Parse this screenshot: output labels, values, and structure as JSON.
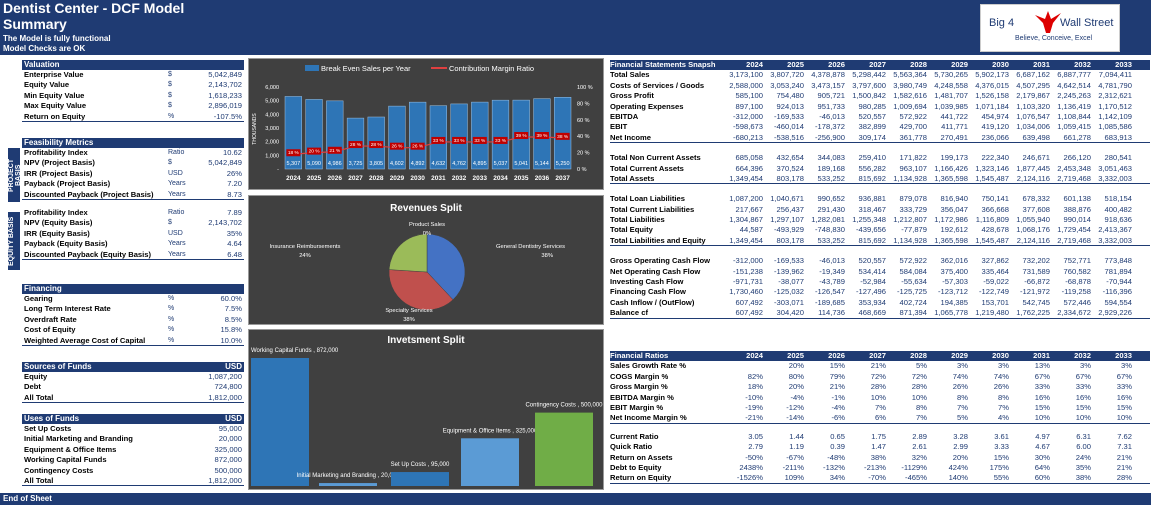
{
  "header": {
    "title": "Dentist Center - DCF Model",
    "subtitle": "Summary",
    "status1": "The Model is fully functional",
    "status2": "Model Checks are OK"
  },
  "logo": {
    "left": "Big 4",
    "right": "Wall Street",
    "tagline": "Believe, Conceive, Excel"
  },
  "valuation": {
    "title": "Valuation",
    "rows": [
      {
        "label": "Enterprise Value",
        "unit": "$",
        "value": "5,042,849"
      },
      {
        "label": "Equity Value",
        "unit": "$",
        "value": "2,143,702"
      },
      {
        "label": "Min Equity Value",
        "unit": "$",
        "value": "1,618,233"
      },
      {
        "label": "Max Equity Value",
        "unit": "$",
        "value": "2,896,019"
      },
      {
        "label": "Return on Equity",
        "unit": "%",
        "value": "-107.5%"
      }
    ]
  },
  "feasibility": {
    "title": "Feasibility Metrics",
    "side_project": "PROJECT BASIS",
    "side_equity": "EQUITY BASIS",
    "project": [
      {
        "label": "Profitability Index",
        "unit": "Ratio",
        "value": "10.62"
      },
      {
        "label": "NPV (Project Basis)",
        "unit": "$",
        "value": "5,042,849"
      },
      {
        "label": "IRR (Project Basis)",
        "unit": "USD",
        "value": "26%"
      },
      {
        "label": "Payback  (Project Basis)",
        "unit": "Years",
        "value": "7.20"
      },
      {
        "label": "Discounted Payback (Project Basis)",
        "unit": "Years",
        "value": "8.73"
      }
    ],
    "equity": [
      {
        "label": "Profitability Index",
        "unit": "Ratio",
        "value": "7.89"
      },
      {
        "label": "NPV (Equity Basis)",
        "unit": "$",
        "value": "2,143,702"
      },
      {
        "label": "IRR (Equity Basis)",
        "unit": "USD",
        "value": "35%"
      },
      {
        "label": "Payback  (Equity Basis)",
        "unit": "Years",
        "value": "4.64"
      },
      {
        "label": "Discounted Payback  (Equity Basis)",
        "unit": "Years",
        "value": "6.48"
      }
    ]
  },
  "financing": {
    "title": "Financing",
    "rows": [
      {
        "label": "Gearing",
        "unit": "%",
        "value": "60.0%"
      },
      {
        "label": "Long Term Interest Rate",
        "unit": "%",
        "value": "7.5%"
      },
      {
        "label": "Overdraft Rate",
        "unit": "%",
        "value": "8.5%"
      },
      {
        "label": "Cost of Equity",
        "unit": "%",
        "value": "15.8%"
      },
      {
        "label": "Weighted Average Cost of Capital",
        "unit": "%",
        "value": "10.0%"
      }
    ]
  },
  "sources": {
    "title": "Sources of Funds",
    "unit": "USD",
    "rows": [
      {
        "label": "Equity",
        "value": "1,087,200"
      },
      {
        "label": "Debt",
        "value": "724,800"
      },
      {
        "label": "All Total",
        "value": "1,812,000"
      }
    ]
  },
  "uses": {
    "title": "Uses of Funds",
    "unit": "USD",
    "rows": [
      {
        "label": "Set Up Costs",
        "value": "95,000"
      },
      {
        "label": "Initial Marketing and Branding",
        "value": "20,000"
      },
      {
        "label": "Equipment & Office Items",
        "value": "325,000"
      },
      {
        "label": "Working Capital Funds",
        "value": "872,000"
      },
      {
        "label": "Contingency Costs",
        "value": "500,000"
      },
      {
        "label": "All Total",
        "value": "1,812,000"
      }
    ]
  },
  "chart_data": [
    {
      "type": "bar",
      "title": "",
      "legend": [
        "Break Even Sales per Year",
        "Contribution Margin Ratio"
      ],
      "ylabel": "THOUSANDS",
      "categories": [
        "2024",
        "2025",
        "2026",
        "2027",
        "2028",
        "2029",
        "2030",
        "2031",
        "2032",
        "2033",
        "2034",
        "2035",
        "2036",
        "2037"
      ],
      "series": [
        {
          "name": "Break Even Sales per Year",
          "values": [
            5307,
            5090,
            4986,
            3725,
            3805,
            4602,
            4892,
            4632,
            4762,
            4895,
            5037,
            5041,
            5144,
            5250
          ],
          "labels": [
            "5,307",
            "5,090",
            "4,986",
            "3,725",
            "3,805",
            "4,602",
            "4,892",
            "4,632",
            "4,762",
            "4,895",
            "5,037",
            "5,041",
            "5,144",
            "5,250"
          ]
        },
        {
          "name": "Contribution Margin Ratio",
          "values": [
            18,
            20,
            21,
            28,
            28,
            26,
            26,
            33,
            33,
            33,
            33,
            39,
            39,
            38
          ],
          "labels": [
            "18 %",
            "20 %",
            "21 %",
            "28 %",
            "28 %",
            "26 %",
            "26 %",
            "33 %",
            "33 %",
            "33 %",
            "33 %",
            "39 %",
            "39 %",
            "38 %"
          ]
        }
      ],
      "ylim": [
        0,
        6000
      ],
      "yticks": [
        "6,000",
        "5,000",
        "4,000",
        "3,000",
        "2,000",
        "1,000",
        "-"
      ],
      "y2ticks": [
        "100 %",
        "80 %",
        "60 %",
        "40 %",
        "20 %",
        "0 %"
      ]
    },
    {
      "type": "pie",
      "title": "Revenues Split",
      "slices": [
        {
          "label": "General Dentistry Services",
          "value": 38,
          "text": "38%"
        },
        {
          "label": "Specialty Services",
          "value": 38,
          "text": "38%"
        },
        {
          "label": "Insurance Reimbursements",
          "value": 24,
          "text": "24%"
        },
        {
          "label": "Product Sales",
          "value": 0,
          "text": "0%"
        }
      ],
      "colors": [
        "#4472c4",
        "#c0504d",
        "#9bbb59",
        "#8064a2"
      ]
    },
    {
      "type": "bar",
      "title": "Invetsment Split",
      "categories": [
        "Working Capital Funds",
        "Initial Marketing and Branding",
        "Set Up Costs",
        "Equipment & Office Items",
        "Contingency Costs"
      ],
      "values": [
        872000,
        20000,
        95000,
        325000,
        500000
      ],
      "labels": [
        "Working Capital Funds , 872,000",
        "Initial Marketing and Branding , 20,000",
        "Set Up Costs , 95,000",
        "Equipment & Office Items , 325,000",
        "Contingency Costs , 500,000"
      ],
      "colors": [
        "#2e75b6",
        "#5b9bd5",
        "#2e75b6",
        "#5b9bd5",
        "#70ad47"
      ]
    }
  ],
  "fs": {
    "title": "Financial Statements Snapsh",
    "years": [
      "2024",
      "2025",
      "2026",
      "2027",
      "2028",
      "2029",
      "2030",
      "2031",
      "2032",
      "2033"
    ],
    "g1": [
      {
        "label": "Total Sales",
        "v": [
          "3,173,100",
          "3,807,720",
          "4,378,878",
          "5,298,442",
          "5,563,364",
          "5,730,265",
          "5,902,173",
          "6,687,162",
          "6,887,777",
          "7,094,411"
        ]
      },
      {
        "label": "Costs of Services / Goods",
        "v": [
          "2,588,000",
          "3,053,240",
          "3,473,157",
          "3,797,600",
          "3,980,749",
          "4,248,558",
          "4,376,015",
          "4,507,295",
          "4,642,514",
          "4,781,790"
        ]
      },
      {
        "label": "Gross Profit",
        "v": [
          "585,100",
          "754,480",
          "905,721",
          "1,500,842",
          "1,582,616",
          "1,481,707",
          "1,526,158",
          "2,179,867",
          "2,245,263",
          "2,312,621"
        ]
      },
      {
        "label": "Operating Expenses",
        "v": [
          "897,100",
          "924,013",
          "951,733",
          "980,285",
          "1,009,694",
          "1,039,985",
          "1,071,184",
          "1,103,320",
          "1,136,419",
          "1,170,512"
        ]
      },
      {
        "label": "EBITDA",
        "v": [
          "-312,000",
          "-169,533",
          "-46,013",
          "520,557",
          "572,922",
          "441,722",
          "454,974",
          "1,076,547",
          "1,108,844",
          "1,142,109"
        ]
      },
      {
        "label": "EBIT",
        "v": [
          "-598,673",
          "-460,014",
          "-178,372",
          "382,899",
          "429,700",
          "411,771",
          "419,120",
          "1,034,006",
          "1,059,415",
          "1,085,586"
        ]
      },
      {
        "label": "Net Income",
        "v": [
          "-680,213",
          "-538,516",
          "-256,900",
          "309,174",
          "361,778",
          "270,491",
          "236,066",
          "639,498",
          "661,278",
          "683,913"
        ]
      }
    ],
    "g2": [
      {
        "label": "Total Non Current Assets",
        "v": [
          "685,058",
          "432,654",
          "344,083",
          "259,410",
          "171,822",
          "199,173",
          "222,340",
          "246,671",
          "266,120",
          "280,541"
        ]
      },
      {
        "label": "Total Current Assets",
        "v": [
          "664,396",
          "370,524",
          "189,168",
          "556,282",
          "963,107",
          "1,166,426",
          "1,323,146",
          "1,877,445",
          "2,453,348",
          "3,051,463"
        ]
      },
      {
        "label": "Total Assets",
        "v": [
          "1,349,454",
          "803,178",
          "533,252",
          "815,692",
          "1,134,928",
          "1,365,598",
          "1,545,487",
          "2,124,116",
          "2,719,468",
          "3,332,003"
        ]
      }
    ],
    "g3": [
      {
        "label": "Total Loan Liabilities",
        "v": [
          "1,087,200",
          "1,040,671",
          "990,652",
          "936,881",
          "879,078",
          "816,940",
          "750,141",
          "678,332",
          "601,138",
          "518,154"
        ]
      },
      {
        "label": "Total Current Liabilities",
        "v": [
          "217,667",
          "256,437",
          "291,430",
          "318,467",
          "333,729",
          "356,047",
          "366,668",
          "377,608",
          "388,876",
          "400,482"
        ]
      },
      {
        "label": "Total Liabilities",
        "v": [
          "1,304,867",
          "1,297,107",
          "1,282,081",
          "1,255,348",
          "1,212,807",
          "1,172,986",
          "1,116,809",
          "1,055,940",
          "990,014",
          "918,636"
        ]
      },
      {
        "label": "Total Equity",
        "v": [
          "44,587",
          "-493,929",
          "-748,830",
          "-439,656",
          "-77,879",
          "192,612",
          "428,678",
          "1,068,176",
          "1,729,454",
          "2,413,367"
        ]
      },
      {
        "label": "Total Liabilities and Equity",
        "v": [
          "1,349,454",
          "803,178",
          "533,252",
          "815,692",
          "1,134,928",
          "1,365,598",
          "1,545,487",
          "2,124,116",
          "2,719,468",
          "3,332,003"
        ]
      }
    ],
    "g4": [
      {
        "label": "Gross Operating Cash Flow",
        "v": [
          "-312,000",
          "-169,533",
          "-46,013",
          "520,557",
          "572,922",
          "362,016",
          "327,862",
          "732,202",
          "752,771",
          "773,848"
        ]
      },
      {
        "label": "Net Operating Cash Flow",
        "v": [
          "-151,238",
          "-139,962",
          "-19,349",
          "534,414",
          "584,084",
          "375,400",
          "335,464",
          "731,589",
          "760,582",
          "781,894"
        ]
      },
      {
        "label": "Investing Cash Flow",
        "v": [
          "-971,731",
          "-38,077",
          "-43,789",
          "-52,984",
          "-55,634",
          "-57,303",
          "-59,022",
          "-66,872",
          "-68,878",
          "-70,944"
        ]
      },
      {
        "label": "Financing Cash Flow",
        "v": [
          "1,730,460",
          "-125,032",
          "-126,547",
          "-127,496",
          "-125,725",
          "-123,712",
          "-122,749",
          "-121,972",
          "-119,258",
          "-116,396"
        ]
      },
      {
        "label": "Cash Inflow / (OutFlow)",
        "v": [
          "607,492",
          "-303,071",
          "-189,685",
          "353,934",
          "402,724",
          "194,385",
          "153,701",
          "542,745",
          "572,446",
          "594,554"
        ]
      },
      {
        "label": "Balance cf",
        "v": [
          "607,492",
          "304,420",
          "114,736",
          "468,669",
          "871,394",
          "1,065,778",
          "1,219,480",
          "1,762,225",
          "2,334,672",
          "2,929,226"
        ]
      }
    ]
  },
  "ratios": {
    "title": "Financial Ratios",
    "years": [
      "2024",
      "2025",
      "2026",
      "2027",
      "2028",
      "2029",
      "2030",
      "2031",
      "2032",
      "2033"
    ],
    "g1": [
      {
        "label": "Sales Growth Rate %",
        "v": [
          "",
          "20%",
          "15%",
          "21%",
          "5%",
          "3%",
          "3%",
          "13%",
          "3%",
          "3%"
        ]
      },
      {
        "label": "COGS Margin %",
        "v": [
          "82%",
          "80%",
          "79%",
          "72%",
          "72%",
          "74%",
          "74%",
          "67%",
          "67%",
          "67%"
        ]
      },
      {
        "label": "Gross Margin %",
        "v": [
          "18%",
          "20%",
          "21%",
          "28%",
          "28%",
          "26%",
          "26%",
          "33%",
          "33%",
          "33%"
        ]
      },
      {
        "label": "EBITDA Margin %",
        "v": [
          "-10%",
          "-4%",
          "-1%",
          "10%",
          "10%",
          "8%",
          "8%",
          "16%",
          "16%",
          "16%"
        ]
      },
      {
        "label": "EBIT Margin %",
        "v": [
          "-19%",
          "-12%",
          "-4%",
          "7%",
          "8%",
          "7%",
          "7%",
          "15%",
          "15%",
          "15%"
        ]
      },
      {
        "label": "Net Income Margin %",
        "v": [
          "-21%",
          "-14%",
          "-6%",
          "6%",
          "7%",
          "5%",
          "4%",
          "10%",
          "10%",
          "10%"
        ]
      }
    ],
    "g2": [
      {
        "label": "Current Ratio",
        "v": [
          "3.05",
          "1.44",
          "0.65",
          "1.75",
          "2.89",
          "3.28",
          "3.61",
          "4.97",
          "6.31",
          "7.62"
        ]
      },
      {
        "label": "Quick Ratio",
        "v": [
          "2.79",
          "1.19",
          "0.39",
          "1.47",
          "2.61",
          "2.99",
          "3.33",
          "4.67",
          "6.00",
          "7.31"
        ]
      },
      {
        "label": "Return on Assets",
        "v": [
          "-50%",
          "-67%",
          "-48%",
          "38%",
          "32%",
          "20%",
          "15%",
          "30%",
          "24%",
          "21%"
        ]
      },
      {
        "label": "Debt to Equity",
        "v": [
          "2438%",
          "-211%",
          "-132%",
          "-213%",
          "-1129%",
          "424%",
          "175%",
          "64%",
          "35%",
          "21%"
        ]
      },
      {
        "label": "Return on Equity",
        "v": [
          "-1526%",
          "109%",
          "34%",
          "-70%",
          "-465%",
          "140%",
          "55%",
          "60%",
          "38%",
          "28%"
        ]
      }
    ]
  },
  "footer": "End of Sheet"
}
